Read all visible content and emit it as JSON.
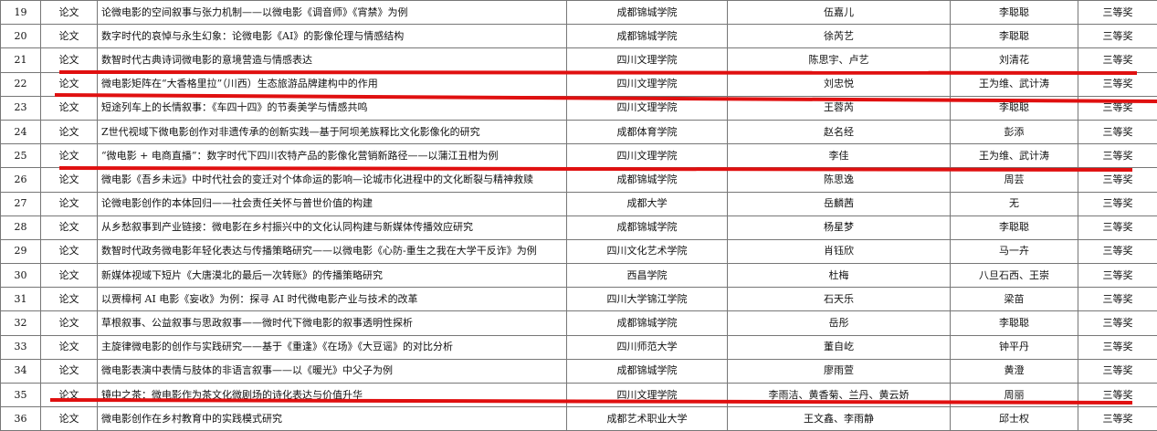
{
  "table": {
    "rows": [
      [
        "19",
        "论文",
        "论微电影的空间叙事与张力机制——以微电影《调音师》《宵禁》为例",
        "成都锦城学院",
        "伍嘉儿",
        "李聪聪",
        "三等奖"
      ],
      [
        "20",
        "论文",
        "数字时代的哀悼与永生幻象：论微电影《AI》的影像伦理与情感结构",
        "成都锦城学院",
        "徐芮艺",
        "李聪聪",
        "三等奖"
      ],
      [
        "21",
        "论文",
        "数智时代古典诗词微电影的意境营造与情感表达",
        "四川文理学院",
        "陈思宇、卢艺",
        "刘清花",
        "三等奖"
      ],
      [
        "22",
        "论文",
        "微电影矩阵在“大香格里拉”（川西）生态旅游品牌建构中的作用",
        "四川文理学院",
        "刘忠悦",
        "王为维、武计涛",
        "三等奖"
      ],
      [
        "23",
        "论文",
        "短途列车上的长情叙事：《车四十四》的节奏美学与情感共鸣",
        "四川文理学院",
        "王蓉芮",
        "李聪聪",
        "三等奖"
      ],
      [
        "24",
        "论文",
        "Z世代视域下微电影创作对非遗传承的创新实践—基于阿坝羌族释比文化影像化的研究",
        "成都体育学院",
        "赵名经",
        "彭添",
        "三等奖"
      ],
      [
        "25",
        "论文",
        "“微电影 + 电商直播”：数字时代下四川农特产品的影像化营销新路径——以蒲江丑柑为例",
        "四川文理学院",
        "李佳",
        "王为维、武计涛",
        "三等奖"
      ],
      [
        "26",
        "论文",
        "微电影《吾乡未远》中时代社会的变迁对个体命运的影响—论城市化进程中的文化断裂与精神救赎",
        "成都锦城学院",
        "陈思逸",
        "周芸",
        "三等奖"
      ],
      [
        "27",
        "论文",
        "论微电影创作的本体回归——社会责任关怀与普世价值的构建",
        "成都大学",
        "岳麟茜",
        "无",
        "三等奖"
      ],
      [
        "28",
        "论文",
        "从乡愁叙事到产业链接：微电影在乡村振兴中的文化认同构建与新媒体传播效应研究",
        "成都锦城学院",
        "杨星梦",
        "李聪聪",
        "三等奖"
      ],
      [
        "29",
        "论文",
        "数智时代政务微电影年轻化表达与传播策略研究——以微电影《心防-重生之我在大学干反诈》为例",
        "四川文化艺术学院",
        "肖钰欣",
        "马一卉",
        "三等奖"
      ],
      [
        "30",
        "论文",
        "新媒体视域下短片《大唐漠北的最后一次转账》的传播策略研究",
        "西昌学院",
        "杜梅",
        "八旦石西、王崇",
        "三等奖"
      ],
      [
        "31",
        "论文",
        "以贾樟柯 AI 电影《妄收》为例：探寻 AI 时代微电影产业与技术的改革",
        "四川大学锦江学院",
        "石天乐",
        "梁苗",
        "三等奖"
      ],
      [
        "32",
        "论文",
        "草根叙事、公益叙事与思政叙事——微时代下微电影的叙事透明性探析",
        "成都锦城学院",
        "岳彤",
        "李聪聪",
        "三等奖"
      ],
      [
        "33",
        "论文",
        "主旋律微电影的创作与实践研究——基于《重逢》《在场》《大豆谣》的对比分析",
        "四川师范大学",
        "董自屹",
        "钟平丹",
        "三等奖"
      ],
      [
        "34",
        "论文",
        "微电影表演中表情与肢体的非语言叙事——以《暖光》中父子为例",
        "成都锦城学院",
        "廖雨萱",
        "黄澄",
        "三等奖"
      ],
      [
        "35",
        "论文",
        "镜中之茶：微电影作为茶文化微剧场的诗化表达与价值升华",
        "四川文理学院",
        "李雨洁、黄香菊、兰丹、黄云娇",
        "周丽",
        "三等奖"
      ],
      [
        "36",
        "论文",
        "微电影创作在乡村教育中的实践模式研究",
        "成都艺术职业大学",
        "王文鑫、李雨静",
        "邱士权",
        "三等奖"
      ]
    ]
  }
}
